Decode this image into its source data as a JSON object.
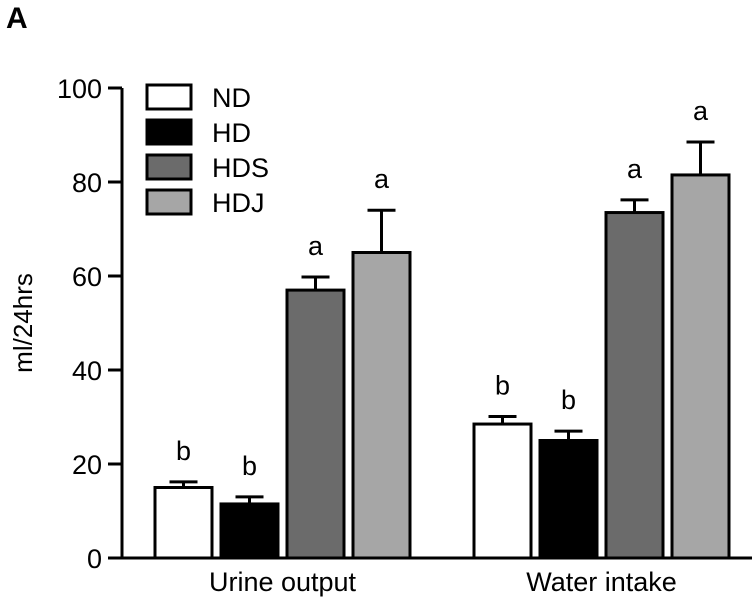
{
  "panel_label": "A",
  "chart_data": {
    "type": "bar",
    "ylabel": "ml/24hrs",
    "ylim": [
      0,
      100
    ],
    "yticks": [
      0,
      20,
      40,
      60,
      80,
      100
    ],
    "categories": [
      "Urine output",
      "Water intake"
    ],
    "legend_position": "top-left",
    "series": [
      {
        "name": "ND",
        "color": "#ffffff",
        "values": [
          15,
          28.5
        ],
        "errors": [
          1.2,
          1.6
        ],
        "letters": [
          "b",
          "b"
        ]
      },
      {
        "name": "HD",
        "color": "#000000",
        "values": [
          11.5,
          25
        ],
        "errors": [
          1.5,
          2
        ],
        "letters": [
          "b",
          "b"
        ]
      },
      {
        "name": "HDS",
        "color": "#6b6b6b",
        "values": [
          57,
          73.5
        ],
        "errors": [
          2.8,
          2.7
        ],
        "letters": [
          "a",
          "a"
        ]
      },
      {
        "name": "HDJ",
        "color": "#a6a6a6",
        "values": [
          65,
          81.5
        ],
        "errors": [
          9,
          7
        ],
        "letters": [
          "a",
          "a"
        ]
      }
    ]
  }
}
